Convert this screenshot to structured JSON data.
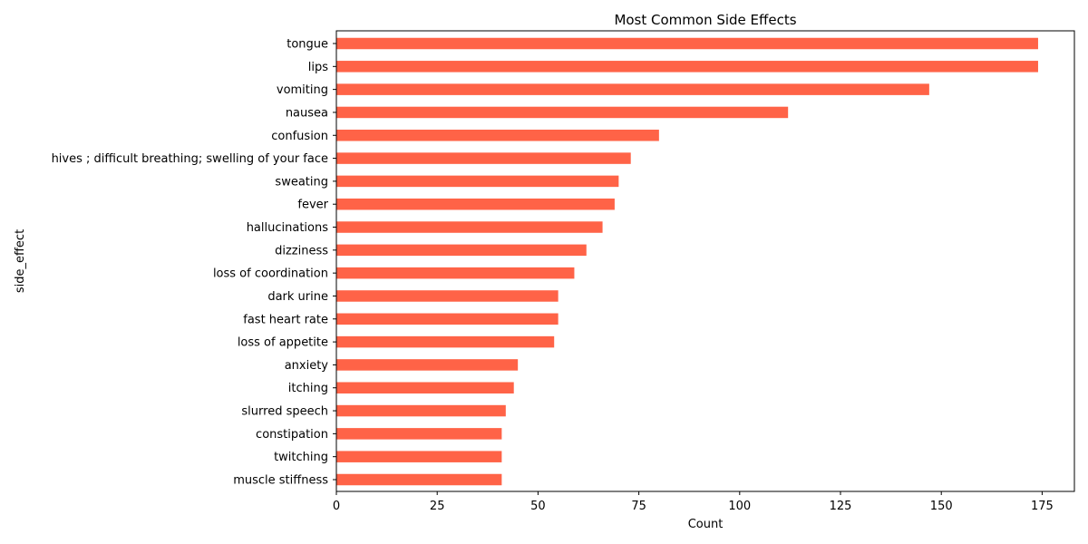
{
  "chart_data": {
    "type": "bar",
    "orientation": "horizontal",
    "title": "Most Common Side Effects",
    "xlabel": "Count",
    "ylabel": "side_effect",
    "xlim": [
      0,
      183
    ],
    "xticks": [
      0,
      25,
      50,
      75,
      100,
      125,
      150,
      175
    ],
    "grid": false,
    "bar_color": "#ff6347",
    "categories": [
      "tongue",
      "lips",
      "vomiting",
      "nausea",
      "confusion",
      "hives ; difficult breathing; swelling of your face",
      "sweating",
      "fever",
      "hallucinations",
      "dizziness",
      "loss of coordination",
      "dark urine",
      "fast heart rate",
      "loss of appetite",
      "anxiety",
      "itching",
      "slurred speech",
      "constipation",
      "twitching",
      "muscle stiffness"
    ],
    "values": [
      174,
      174,
      147,
      112,
      80,
      73,
      70,
      69,
      66,
      62,
      59,
      55,
      55,
      54,
      45,
      44,
      42,
      41,
      41,
      41
    ]
  }
}
